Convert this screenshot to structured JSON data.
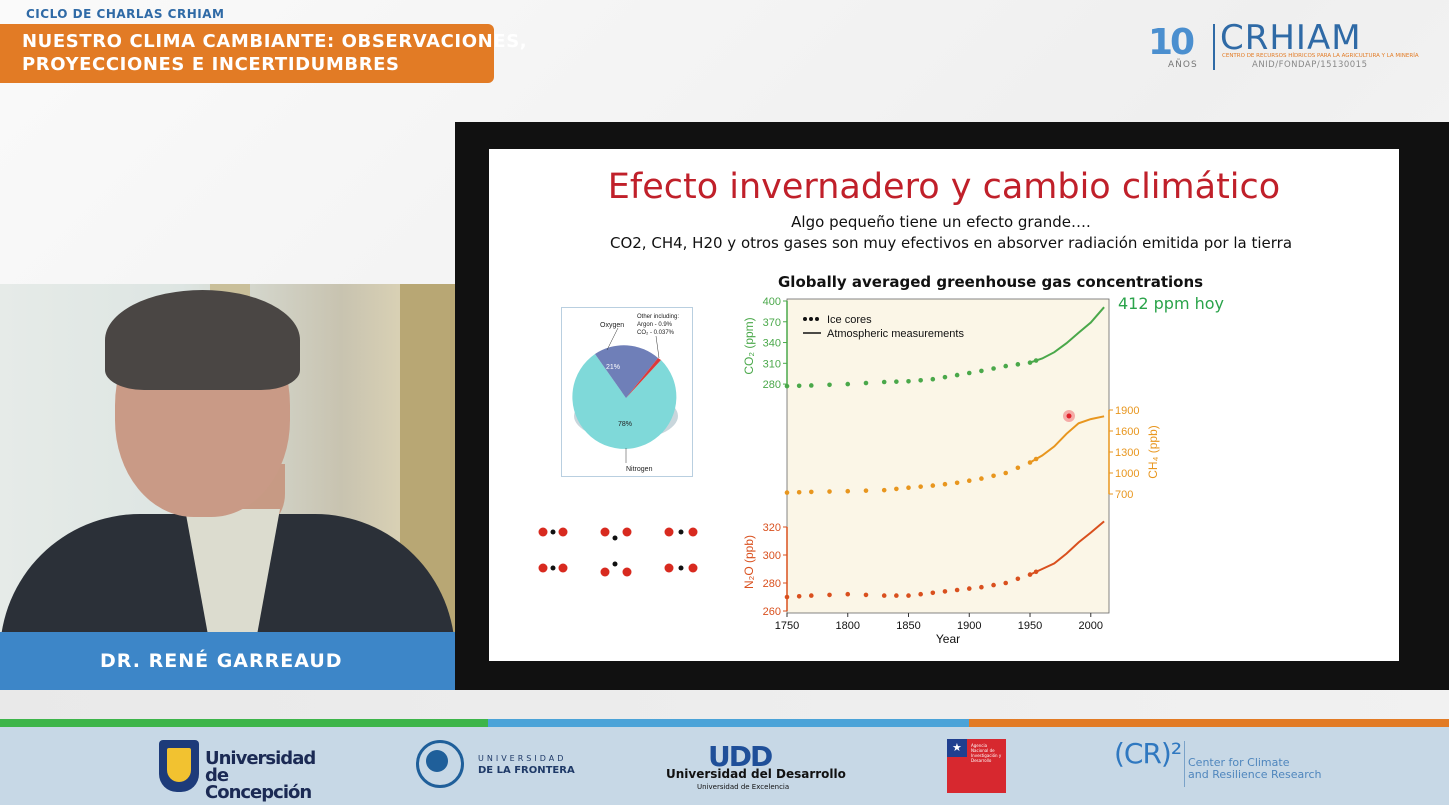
{
  "header": {
    "series": "CICLO DE CHARLAS CRHIAM",
    "title_line1": "NUESTRO CLIMA CAMBIANTE: OBSERVACIONES,",
    "title_line2": "PROYECCIONES E INCERTIDUMBRES"
  },
  "crhiam_logo": {
    "number": "10",
    "anos": "AÑOS",
    "name": "CRHIAM",
    "subtitle": "CENTRO DE RECURSOS HÍDRICOS PARA LA AGRICULTURA Y LA MINERÍA",
    "code": "ANID/FONDAP/15130015"
  },
  "speaker": {
    "name": "DR. RENÉ GARREAUD"
  },
  "slide": {
    "title": "Efecto invernadero y cambio climático",
    "subtitle1": "Algo pequeño tiene un efecto grande….",
    "subtitle2": "CO2, CH4, H20 y otros gases son muy efectivos en absorver radiación emitida por la tierra",
    "annotation": "412 ppm hoy",
    "pie": {
      "oxygen_label": "Oxygen",
      "other_label1": "Other including:",
      "other_label2": "Argon - 0.9%",
      "other_label3": "CO₂ - 0.037%",
      "oxygen_pct": "21%",
      "nitrogen_pct": "78%",
      "nitrogen_label": "Nitrogen"
    }
  },
  "chart_data": {
    "type": "scatter",
    "title": "Globally averaged greenhouse gas concentrations",
    "xlabel": "Year",
    "x_ticks": [
      1750,
      1800,
      1850,
      1900,
      1950,
      2000
    ],
    "xlim": [
      1750,
      2015
    ],
    "legend": {
      "placement": "top-left",
      "entries": [
        "Ice cores",
        "Atmospheric measurements"
      ]
    },
    "panels": [
      {
        "name": "CO₂",
        "ylabel": "CO₂ (ppm)",
        "yticks": [
          280,
          310,
          340,
          370,
          400
        ],
        "ylim": [
          270,
          400
        ],
        "color": "#4aa84a",
        "axis_side": "left",
        "values": [
          [
            1750,
            277
          ],
          [
            1770,
            278
          ],
          [
            1800,
            280
          ],
          [
            1830,
            283
          ],
          [
            1850,
            284
          ],
          [
            1870,
            287
          ],
          [
            1890,
            293
          ],
          [
            1910,
            299
          ],
          [
            1930,
            306
          ],
          [
            1950,
            311
          ],
          [
            1960,
            317
          ],
          [
            1970,
            326
          ],
          [
            1980,
            339
          ],
          [
            1990,
            354
          ],
          [
            2000,
            369
          ],
          [
            2011,
            391
          ]
        ]
      },
      {
        "name": "CH₄",
        "ylabel": "CH₄ (ppb)",
        "yticks": [
          700,
          1000,
          1300,
          1600,
          1900
        ],
        "ylim": [
          600,
          2000
        ],
        "color": "#e8961e",
        "axis_side": "right",
        "values": [
          [
            1750,
            720
          ],
          [
            1770,
            730
          ],
          [
            1800,
            740
          ],
          [
            1830,
            755
          ],
          [
            1850,
            790
          ],
          [
            1870,
            820
          ],
          [
            1890,
            860
          ],
          [
            1910,
            920
          ],
          [
            1930,
            1000
          ],
          [
            1950,
            1150
          ],
          [
            1960,
            1250
          ],
          [
            1970,
            1380
          ],
          [
            1980,
            1560
          ],
          [
            1990,
            1710
          ],
          [
            2000,
            1770
          ],
          [
            2011,
            1810
          ]
        ]
      },
      {
        "name": "N₂O",
        "ylabel": "N₂O (ppb)",
        "yticks": [
          260,
          280,
          300,
          320
        ],
        "ylim": [
          260,
          330
        ],
        "color": "#d9501e",
        "axis_side": "left",
        "values": [
          [
            1750,
            270
          ],
          [
            1770,
            271
          ],
          [
            1800,
            272
          ],
          [
            1830,
            271
          ],
          [
            1850,
            271
          ],
          [
            1870,
            273
          ],
          [
            1890,
            275
          ],
          [
            1910,
            277
          ],
          [
            1930,
            280
          ],
          [
            1950,
            286
          ],
          [
            1960,
            290
          ],
          [
            1970,
            294
          ],
          [
            1980,
            301
          ],
          [
            1990,
            309
          ],
          [
            2000,
            316
          ],
          [
            2011,
            324
          ]
        ]
      }
    ]
  },
  "footer": {
    "udec": "Universidad de Concepción",
    "udec_line1": "Universidad",
    "udec_line2": "de Concepción",
    "ufro_top": "UNIVERSIDAD",
    "ufro_bottom": "DE LA FRONTERA",
    "udd_mark": "UDD",
    "udd_name": "Universidad del Desarrollo",
    "udd_tag": "Universidad de Excelencia",
    "anid_text": "Agencia Nacional de Investigación y Desarrollo",
    "cr2_mark": "(CR)²",
    "cr2_line1": "Center for Climate",
    "cr2_line2": "and Resilience Research"
  },
  "colors": {
    "accent_orange": "#e27b25",
    "accent_blue": "#3d86c8",
    "slide_title_red": "#c0202a",
    "co2_green": "#4aa84a",
    "ch4_orange": "#e8961e",
    "n2o_red": "#d9501e"
  }
}
